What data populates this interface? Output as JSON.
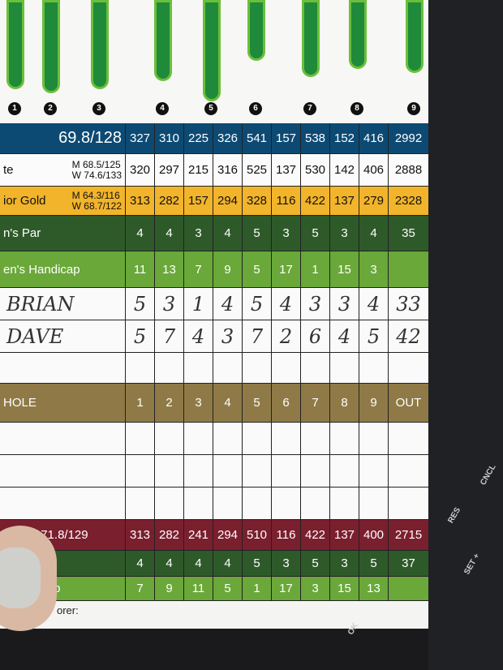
{
  "holes_map_numbers": [
    "1",
    "2",
    "3",
    "4",
    "5",
    "6",
    "7",
    "8",
    "9"
  ],
  "tees": [
    {
      "class": "blue",
      "label": "",
      "rating": "69.8/128",
      "yards": [
        "327",
        "310",
        "225",
        "326",
        "541",
        "157",
        "538",
        "152",
        "416"
      ],
      "total": "2992"
    },
    {
      "class": "white",
      "label": "te",
      "rating_m": "M 68.5/125",
      "rating_w": "W 74.6/133",
      "yards": [
        "320",
        "297",
        "215",
        "316",
        "525",
        "137",
        "530",
        "142",
        "406"
      ],
      "total": "2888"
    },
    {
      "class": "gold",
      "label": "ior Gold",
      "rating_m": "M 64.3/116",
      "rating_w": "W 68.7/122",
      "yards": [
        "313",
        "282",
        "157",
        "294",
        "328",
        "116",
        "422",
        "137",
        "279"
      ],
      "total": "2328"
    }
  ],
  "mens_par": {
    "label": "n's Par",
    "values": [
      "4",
      "4",
      "3",
      "4",
      "5",
      "3",
      "5",
      "3",
      "4"
    ],
    "total": "35"
  },
  "mens_handicap": {
    "label": "en's Handicap",
    "values": [
      "11",
      "13",
      "7",
      "9",
      "5",
      "17",
      "1",
      "15",
      "3"
    ],
    "total": ""
  },
  "players": [
    {
      "name": "BRIAN",
      "scores": [
        "5",
        "3",
        "1",
        "4",
        "5",
        "4",
        "3",
        "3",
        "4"
      ],
      "total": "33"
    },
    {
      "name": "DAVE",
      "scores": [
        "5",
        "7",
        "4",
        "3",
        "7",
        "2",
        "6",
        "4",
        "5"
      ],
      "total": "42"
    }
  ],
  "hole_row": {
    "label": "HOLE",
    "holes": [
      "1",
      "2",
      "3",
      "4",
      "5",
      "6",
      "7",
      "8",
      "9"
    ],
    "total": "OUT"
  },
  "ladies_red": {
    "label": "s' Red 71.8/129",
    "yards": [
      "313",
      "282",
      "241",
      "294",
      "510",
      "116",
      "422",
      "137",
      "400"
    ],
    "total": "2715"
  },
  "ladies_par": {
    "label": "Par",
    "values": [
      "4",
      "4",
      "4",
      "4",
      "5",
      "3",
      "5",
      "3",
      "5"
    ],
    "total": "37"
  },
  "ladies_handicap": {
    "label": "' Handicap",
    "values": [
      "7",
      "9",
      "11",
      "5",
      "1",
      "17",
      "3",
      "15",
      "13"
    ],
    "total": ""
  },
  "scorer_label": "orer:",
  "dash_buttons": [
    "CNCL",
    "RES",
    "SET +",
    "OK"
  ]
}
